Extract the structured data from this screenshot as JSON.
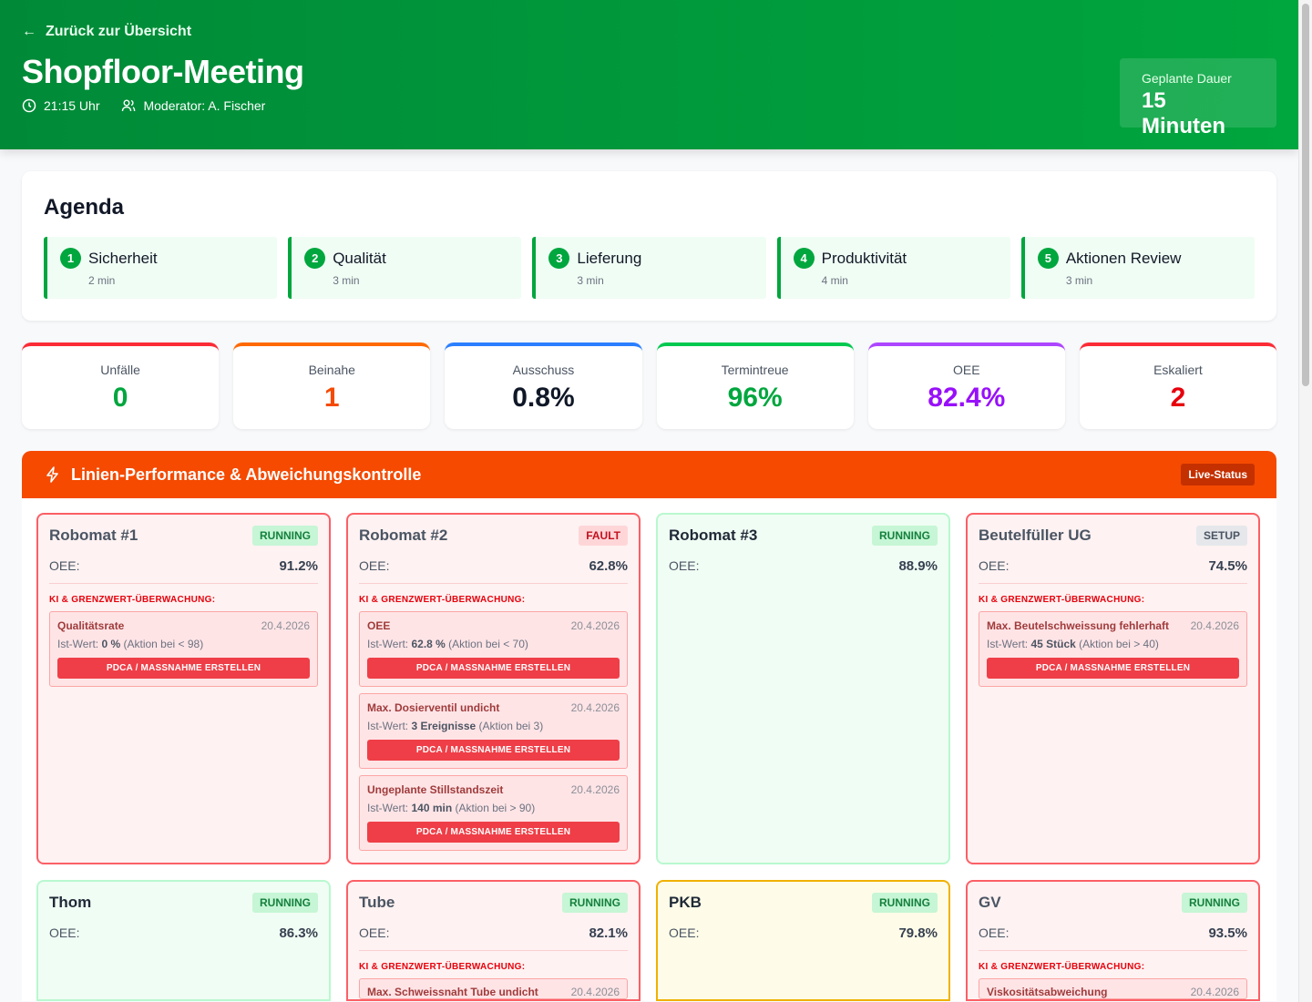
{
  "header": {
    "back_label": "Zurück zur Übersicht",
    "title": "Shopfloor-Meeting",
    "time": "21:15 Uhr",
    "moderator": "Moderator: A. Fischer",
    "duration_label": "Geplante Dauer",
    "duration_value": "15 Minuten"
  },
  "agenda": {
    "title": "Agenda",
    "items": [
      {
        "n": "1",
        "label": "Sicherheit",
        "dur": "2 min"
      },
      {
        "n": "2",
        "label": "Qualität",
        "dur": "3 min"
      },
      {
        "n": "3",
        "label": "Lieferung",
        "dur": "3 min"
      },
      {
        "n": "4",
        "label": "Produktivität",
        "dur": "4 min"
      },
      {
        "n": "5",
        "label": "Aktionen Review",
        "dur": "3 min"
      }
    ]
  },
  "kpis": [
    {
      "label": "Unfälle",
      "value": "0",
      "color": "#00a63e",
      "accent": "#fb2c36"
    },
    {
      "label": "Beinahe",
      "value": "1",
      "color": "#f54a00",
      "accent": "#ff6900"
    },
    {
      "label": "Ausschuss",
      "value": "0.8%",
      "color": "#101828",
      "accent": "#2b7fff"
    },
    {
      "label": "Termintreue",
      "value": "96%",
      "color": "#00a63e",
      "accent": "#00c950"
    },
    {
      "label": "OEE",
      "value": "82.4%",
      "color": "#9810fa",
      "accent": "#ad46ff"
    },
    {
      "label": "Eskaliert",
      "value": "2",
      "color": "#e7000b",
      "accent": "#fb2c36"
    }
  ],
  "section": {
    "title": "Linien-Performance & Abweichungskontrolle",
    "live": "Live-Status",
    "oee_label": "OEE:",
    "ki_label": "KI & GRENZWERT-ÜBERWACHUNG:",
    "ist_label": "Ist-Wert:",
    "button_label": "PDCA / MASSNAHME ERSTELLEN"
  },
  "machines": [
    {
      "name": "Robomat #1",
      "status": "RUNNING",
      "oee": "91.2%",
      "tone": "red",
      "alerts": [
        {
          "title": "Qualitätsrate",
          "date": "20.4.2026",
          "value": "0 %",
          "rule": "(Aktion bei < 98)"
        }
      ]
    },
    {
      "name": "Robomat #2",
      "status": "FAULT",
      "oee": "62.8%",
      "tone": "red",
      "alerts": [
        {
          "title": "OEE",
          "date": "20.4.2026",
          "value": "62.8 %",
          "rule": "(Aktion bei < 70)"
        },
        {
          "title": "Max. Dosierventil undicht",
          "date": "20.4.2026",
          "value": "3 Ereignisse",
          "rule": "(Aktion bei 3)"
        },
        {
          "title": "Ungeplante Stillstandszeit",
          "date": "20.4.2026",
          "value": "140 min",
          "rule": "(Aktion bei > 90)"
        }
      ]
    },
    {
      "name": "Robomat #3",
      "status": "RUNNING",
      "oee": "88.9%",
      "tone": "green",
      "alerts": []
    },
    {
      "name": "Beutelfüller UG",
      "status": "SETUP",
      "oee": "74.5%",
      "tone": "red",
      "alerts": [
        {
          "title": "Max. Beutelschweissung fehlerhaft",
          "date": "20.4.2026",
          "value": "45 Stück",
          "rule": "(Aktion bei > 40)"
        }
      ]
    },
    {
      "name": "Thom",
      "status": "RUNNING",
      "oee": "86.3%",
      "tone": "green",
      "alerts": []
    },
    {
      "name": "Tube",
      "status": "RUNNING",
      "oee": "82.1%",
      "tone": "red",
      "alerts": [
        {
          "title": "Max. Schweissnaht Tube undicht",
          "date": "20.4.2026"
        }
      ]
    },
    {
      "name": "PKB",
      "status": "RUNNING",
      "oee": "79.8%",
      "tone": "yellow",
      "alerts": []
    },
    {
      "name": "GV",
      "status": "RUNNING",
      "oee": "93.5%",
      "tone": "red",
      "alerts": [
        {
          "title": "Viskositätsabweichung",
          "date": "20.4.2026"
        }
      ]
    }
  ]
}
